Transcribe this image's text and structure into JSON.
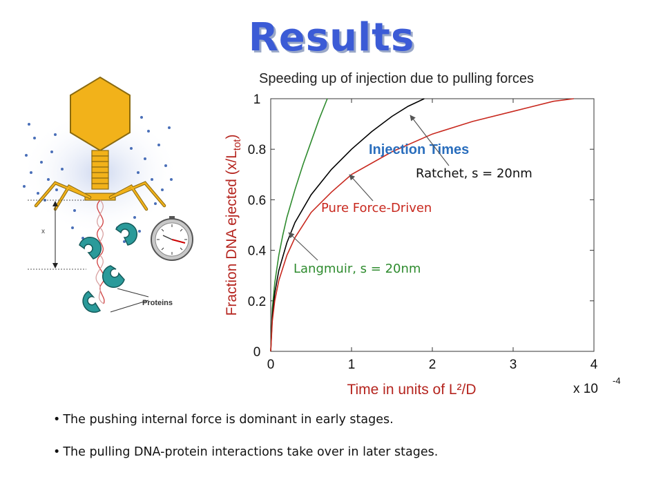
{
  "slide": {
    "title": "Results",
    "bullets": [
      "The pushing internal force is dominant in early stages.",
      "The pulling DNA-protein interactions take over in later stages."
    ]
  },
  "illustration": {
    "x_label": "x",
    "proteins_label": "Proteins",
    "icons": [
      "bacteriophage-icon",
      "dna-helix-icon",
      "protein-icon",
      "stopwatch-icon"
    ]
  },
  "colors": {
    "title": "#3b5bd6",
    "axis_labels": "#b5251f",
    "curve_black": "#000000",
    "curve_red": "#c8281e",
    "curve_green": "#2e8b2e",
    "injection_times": "#2a6ebd",
    "phage_head": "#f2b21a"
  },
  "chart_data": {
    "type": "line",
    "title": "Speeding up of injection due to pulling forces",
    "xlabel": "Time in units of L²/D",
    "x_multiplier": "x 10",
    "x_exponent": "-4",
    "ylabel_main": "Fraction DNA ejected (x/L",
    "ylabel_sub": "tot",
    "ylabel_close": ")",
    "xlim": [
      0,
      4.0
    ],
    "ylim": [
      0,
      1
    ],
    "x_ticks": [
      "0",
      "1",
      "2",
      "3",
      "4"
    ],
    "y_ticks": [
      "0",
      "0.2",
      "0.4",
      "0.6",
      "0.8",
      "1"
    ],
    "grid": false,
    "annotations": {
      "header": "Injection Times",
      "ratchet": "Ratchet, s = 20nm",
      "force": "Pure Force-Driven",
      "langmuir": "Langmuir, s = 20nm"
    },
    "series": [
      {
        "x": [
          0,
          0.02,
          0.05,
          0.1,
          0.15,
          0.2,
          0.3,
          0.4,
          0.5,
          0.6,
          0.7
        ],
        "y": [
          0,
          0.17,
          0.27,
          0.38,
          0.46,
          0.53,
          0.64,
          0.74,
          0.83,
          0.92,
          1.0
        ]
      },
      {
        "x": [
          0,
          0.02,
          0.05,
          0.1,
          0.2,
          0.3,
          0.5,
          0.75,
          1.0,
          1.25,
          1.5,
          1.7,
          1.9
        ],
        "y": [
          0,
          0.14,
          0.23,
          0.32,
          0.43,
          0.51,
          0.62,
          0.72,
          0.8,
          0.87,
          0.93,
          0.97,
          1.0
        ]
      },
      {
        "x": [
          0,
          0.02,
          0.05,
          0.1,
          0.2,
          0.3,
          0.5,
          0.75,
          1.0,
          1.5,
          2.0,
          2.5,
          3.0,
          3.5,
          3.75
        ],
        "y": [
          0,
          0.12,
          0.2,
          0.28,
          0.38,
          0.45,
          0.55,
          0.63,
          0.7,
          0.79,
          0.86,
          0.91,
          0.95,
          0.99,
          1.0
        ]
      }
    ]
  }
}
